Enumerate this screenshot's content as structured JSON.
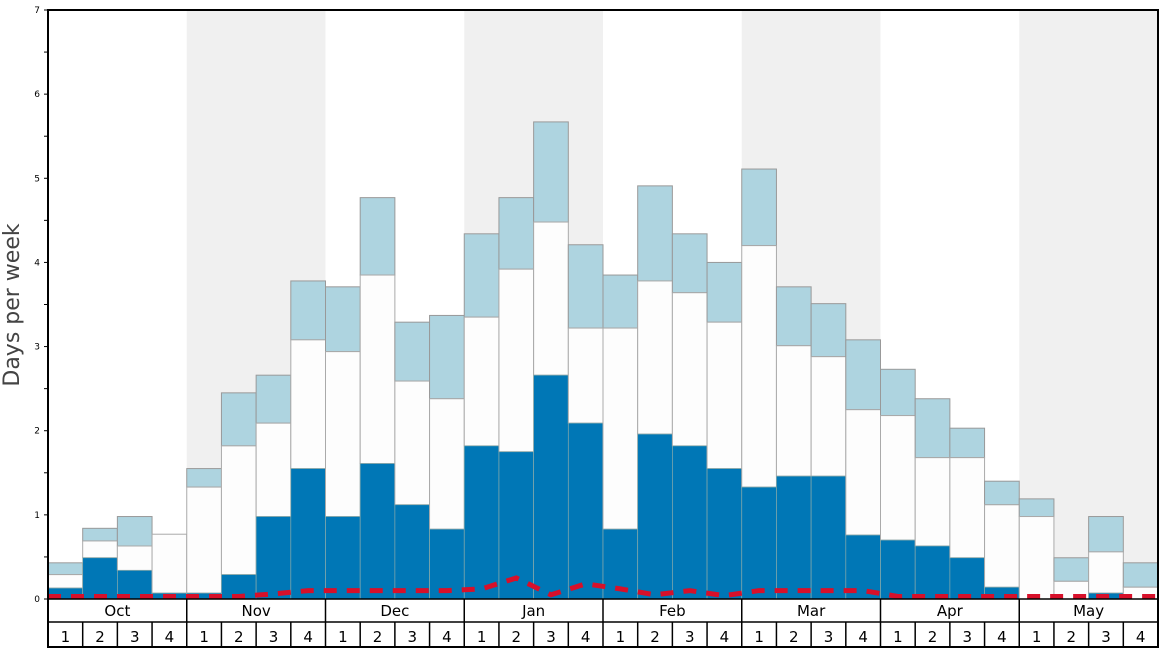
{
  "chart_data": {
    "type": "bar",
    "stacked_cumulative": true,
    "ylabel": "Days per week",
    "ylim": [
      0,
      7
    ],
    "yticks": [
      "0",
      "1",
      "2",
      "3",
      "4",
      "5",
      "6",
      "7"
    ],
    "months": [
      "Oct",
      "Nov",
      "Dec",
      "Jan",
      "Feb",
      "Mar",
      "Apr",
      "May"
    ],
    "week_labels": [
      "1",
      "2",
      "3",
      "4"
    ],
    "grid": false,
    "colors": {
      "dark": "#0077b6",
      "middle": "#fdfdfd",
      "light": "#aed4e0",
      "line": "#d7102a",
      "shade": "#f0f0f0"
    },
    "series": [
      {
        "name": "dark",
        "values": [
          0.13,
          0.49,
          0.34,
          0.07,
          0.07,
          0.29,
          0.98,
          1.55,
          0.98,
          1.61,
          1.12,
          0.83,
          1.82,
          1.75,
          2.66,
          2.09,
          0.83,
          1.96,
          1.82,
          1.55,
          1.33,
          1.46,
          1.46,
          0.76,
          0.7,
          0.63,
          0.49,
          0.14,
          0,
          0,
          0.07,
          0
        ]
      },
      {
        "name": "middle",
        "values": [
          0.29,
          0.69,
          0.63,
          0.77,
          1.33,
          1.82,
          2.09,
          3.08,
          2.94,
          3.85,
          2.59,
          2.38,
          3.35,
          3.92,
          4.48,
          3.22,
          3.22,
          3.78,
          3.64,
          3.29,
          4.2,
          3.01,
          2.88,
          2.25,
          2.18,
          1.68,
          1.68,
          1.12,
          0.98,
          0.21,
          0.56,
          0.14
        ]
      },
      {
        "name": "light",
        "values": [
          0.43,
          0.84,
          0.98,
          0.77,
          1.55,
          2.45,
          2.66,
          3.78,
          3.71,
          4.77,
          3.29,
          3.37,
          4.34,
          4.77,
          5.67,
          4.21,
          3.85,
          4.91,
          4.34,
          4.0,
          5.11,
          3.71,
          3.51,
          3.08,
          2.73,
          2.38,
          2.03,
          1.4,
          1.19,
          0.49,
          0.98,
          0.43
        ]
      },
      {
        "name": "dashed-line",
        "values": [
          0.03,
          0.03,
          0.03,
          0.03,
          0.03,
          0.03,
          0.06,
          0.1,
          0.1,
          0.1,
          0.1,
          0.1,
          0.12,
          0.25,
          0.05,
          0.18,
          0.12,
          0.05,
          0.1,
          0.04,
          0.1,
          0.1,
          0.1,
          0.1,
          0.03,
          0.03,
          0.03,
          0.03,
          0.03,
          0.03,
          0.03,
          0.03
        ]
      }
    ]
  }
}
